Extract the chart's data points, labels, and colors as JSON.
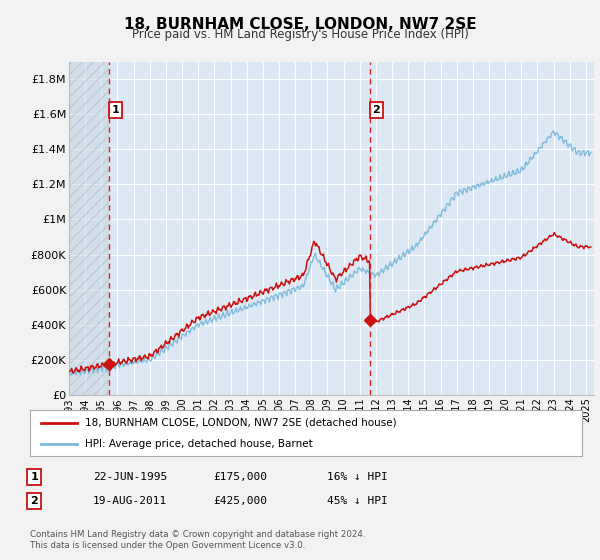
{
  "title": "18, BURNHAM CLOSE, LONDON, NW7 2SE",
  "subtitle": "Price paid vs. HM Land Registry's House Price Index (HPI)",
  "bg_color": "#f2f2f2",
  "plot_bg_color": "#e8f0f8",
  "plot_bg_color2": "#dce8f4",
  "grid_color": "#ffffff",
  "hatch_color": "#c8d8e8",
  "sale1_date_num": 1995.47,
  "sale1_price": 175000,
  "sale1_label": "1",
  "sale2_date_num": 2011.63,
  "sale2_price": 425000,
  "sale2_label": "2",
  "hpi_color": "#7ab8d8",
  "price_color": "#cc1111",
  "vline_color": "#dd2222",
  "ylim_max": 1900000,
  "yticks": [
    0,
    200000,
    400000,
    600000,
    800000,
    1000000,
    1200000,
    1400000,
    1600000,
    1800000
  ],
  "ytick_labels": [
    "£0",
    "£200K",
    "£400K",
    "£600K",
    "£800K",
    "£1M",
    "£1.2M",
    "£1.4M",
    "£1.6M",
    "£1.8M"
  ],
  "xlim_min": 1993.0,
  "xlim_max": 2025.5,
  "legend_line1": "18, BURNHAM CLOSE, LONDON, NW7 2SE (detached house)",
  "legend_line2": "HPI: Average price, detached house, Barnet",
  "annotation1_date": "22-JUN-1995",
  "annotation1_price": "£175,000",
  "annotation1_hpi": "16% ↓ HPI",
  "annotation2_date": "19-AUG-2011",
  "annotation2_price": "£425,000",
  "annotation2_hpi": "45% ↓ HPI",
  "footnote1": "Contains HM Land Registry data © Crown copyright and database right 2024.",
  "footnote2": "This data is licensed under the Open Government Licence v3.0."
}
